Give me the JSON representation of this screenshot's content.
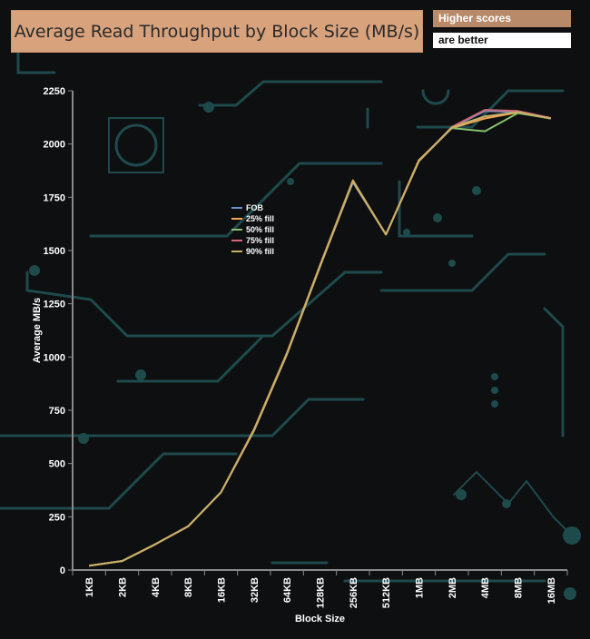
{
  "header": {
    "title": "Average Read Throughput by Block Size (MB/s)",
    "note_line1": "Higher scores",
    "note_line2": "are better"
  },
  "colors": {
    "background": "#0d0f10",
    "circuit": "#1f4a4c",
    "axis": "#8a8a8a",
    "title_box": "#d8a27c",
    "note_box": "#b98a6a"
  },
  "chart_data": {
    "type": "line",
    "categories": [
      "1KB",
      "2KB",
      "4KB",
      "8KB",
      "16KB",
      "32KB",
      "64KB",
      "128KB",
      "256KB",
      "512KB",
      "1MB",
      "2MB",
      "4MB",
      "8MB",
      "16MB"
    ],
    "xlabel": "Block Size",
    "ylabel": "Average MB/s",
    "ylim": [
      0,
      2250
    ],
    "yticks": [
      0,
      250,
      500,
      750,
      1000,
      1250,
      1500,
      1750,
      2000,
      2250
    ],
    "legend_position": "center-left",
    "grid": false,
    "series": [
      {
        "name": "FOB",
        "color": "#6b93c7",
        "values": [
          20,
          42,
          120,
          205,
          365,
          655,
          1015,
          1425,
          1820,
          1575,
          1920,
          2078,
          2155,
          2150,
          2120
        ]
      },
      {
        "name": "25% fill",
        "color": "#f0a458",
        "values": [
          20,
          42,
          120,
          205,
          365,
          660,
          1020,
          1430,
          1830,
          1575,
          1925,
          2075,
          2120,
          2148,
          2120
        ]
      },
      {
        "name": "50% fill",
        "color": "#88c070",
        "values": [
          20,
          42,
          120,
          205,
          365,
          655,
          1015,
          1425,
          1825,
          1575,
          1920,
          2075,
          2060,
          2145,
          2120
        ]
      },
      {
        "name": "75% fill",
        "color": "#d06a78",
        "values": [
          20,
          42,
          120,
          205,
          365,
          655,
          1015,
          1425,
          1825,
          1575,
          1920,
          2080,
          2160,
          2155,
          2122
        ]
      },
      {
        "name": "90% fill",
        "color": "#c8b068",
        "values": [
          20,
          42,
          120,
          205,
          365,
          655,
          1015,
          1425,
          1825,
          1575,
          1920,
          2078,
          2130,
          2150,
          2120
        ]
      }
    ]
  }
}
